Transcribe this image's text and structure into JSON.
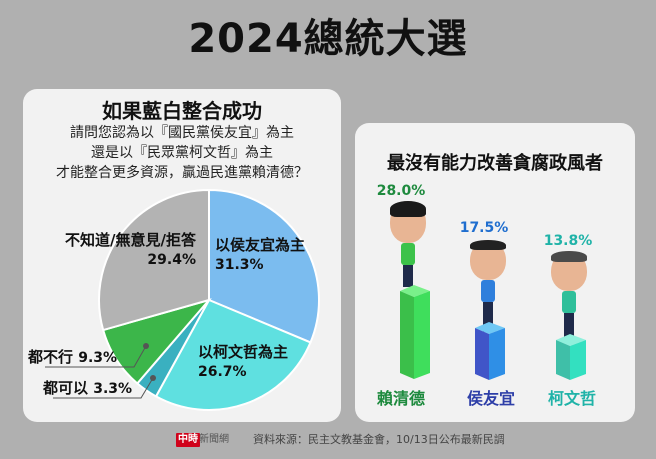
{
  "header": {
    "title": "2024總統大選"
  },
  "left_panel": {
    "title": "如果藍白整合成功",
    "question_lines": [
      "請問您認為以『國民黨侯友宜』為主",
      "還是以『民眾黨柯文哲』為主",
      "才能整合更多資源，贏過民進黨賴清德？"
    ],
    "labels": {
      "hou": {
        "name": "以侯友宜為主",
        "pct": "31.3%"
      },
      "ko": {
        "name": "以柯文哲為主",
        "pct": "26.7%"
      },
      "both": {
        "name": "都可以",
        "pct": "3.3%"
      },
      "neither": {
        "name": "都不行",
        "pct": "9.3%"
      },
      "unknown": {
        "name": "不知道/無意見/拒答",
        "pct": "29.4%"
      }
    },
    "colors": {
      "hou": "#7bbcef",
      "ko": "#5fe0e0",
      "both": "#3ab0c0",
      "neither": "#3cb64a",
      "unknown": "#b3b3b3"
    }
  },
  "right_panel": {
    "title": "最沒有能力改善貪腐政風者",
    "candidates": [
      {
        "name": "賴清德",
        "pct": "28.0%",
        "label_color": "#1e8a3e",
        "pct_color": "#1e8a3e"
      },
      {
        "name": "侯友宜",
        "pct": "17.5%",
        "label_color": "#2e3fa8",
        "pct_color": "#1f6ecf"
      },
      {
        "name": "柯文哲",
        "pct": "13.8%",
        "label_color": "#20b3a8",
        "pct_color": "#20b3a8"
      }
    ]
  },
  "footer": {
    "logo_mark": "中時",
    "logo_text": "新聞網",
    "source": "資料來源：民主文教基金會，10/13日公布最新民調"
  },
  "chart_data": [
    {
      "type": "pie",
      "title": "如果藍白整合成功",
      "subtitle": "請問您認為以『國民黨侯友宜』為主還是以『民眾黨柯文哲』為主才能整合更多資源，贏過民進黨賴清德？",
      "categories": [
        "以侯友宜為主",
        "以柯文哲為主",
        "都可以",
        "都不行",
        "不知道/無意見/拒答"
      ],
      "values": [
        31.3,
        26.7,
        3.3,
        9.3,
        29.4
      ],
      "colors": [
        "#7bbcef",
        "#5fe0e0",
        "#3ab0c0",
        "#3cb64a",
        "#b3b3b3"
      ],
      "start_angle": "12 o'clock, clockwise"
    },
    {
      "type": "bar",
      "title": "最沒有能力改善貪腐政風者",
      "categories": [
        "賴清德",
        "侯友宜",
        "柯文哲"
      ],
      "values": [
        28.0,
        17.5,
        13.8
      ],
      "colors": [
        "#3fd860",
        "#3a5fd6",
        "#3ad4b8"
      ],
      "xlabel": "",
      "ylabel": "",
      "grid": false,
      "legend": false
    }
  ]
}
